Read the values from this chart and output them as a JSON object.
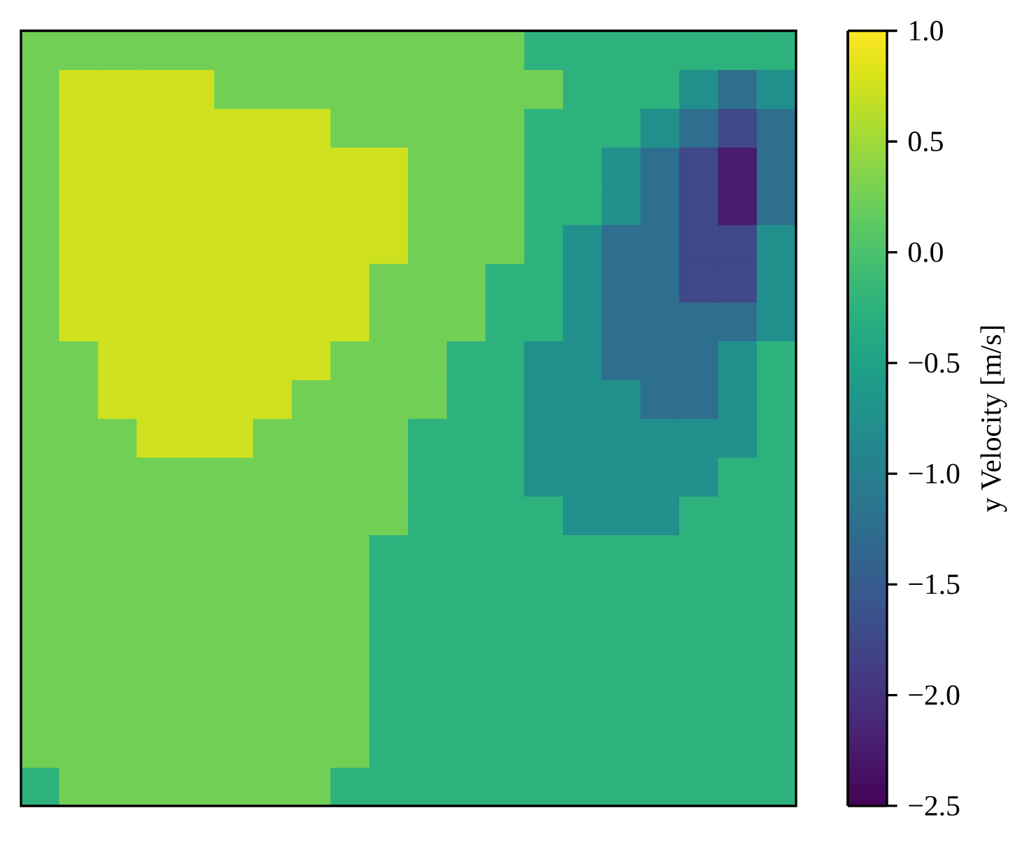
{
  "chart_data": {
    "type": "heatmap",
    "clabel": "y Velocity [m/s]",
    "categories": [
      null,
      null,
      null,
      null,
      null,
      null,
      null,
      null,
      null,
      null,
      null,
      null,
      null,
      null,
      null,
      null,
      null,
      null,
      null,
      null
    ],
    "y_categories": [
      null,
      null,
      null,
      null,
      null,
      null,
      null,
      null,
      null,
      null,
      null,
      null,
      null,
      null,
      null,
      null,
      null,
      null,
      null,
      null
    ],
    "cells": [
      [
        0.25,
        0.25,
        0.25,
        0.25,
        0.25,
        0.25,
        0.25,
        0.25,
        0.25,
        0.25,
        0.25,
        0.25,
        0.25,
        -0.25,
        -0.25,
        -0.25,
        -0.25,
        -0.25,
        -0.25,
        -0.25
      ],
      [
        0.25,
        0.75,
        0.75,
        0.75,
        0.75,
        0.25,
        0.25,
        0.25,
        0.25,
        0.25,
        0.25,
        0.25,
        0.25,
        0.25,
        -0.25,
        -0.25,
        -0.25,
        -0.75,
        -1.25,
        -0.75
      ],
      [
        0.25,
        0.75,
        0.75,
        0.75,
        0.75,
        0.75,
        0.75,
        0.75,
        0.25,
        0.25,
        0.25,
        0.25,
        0.25,
        -0.25,
        -0.25,
        -0.25,
        -0.75,
        -1.25,
        -1.75,
        -1.25
      ],
      [
        0.25,
        0.75,
        0.75,
        0.75,
        0.75,
        0.75,
        0.75,
        0.75,
        0.75,
        0.75,
        0.25,
        0.25,
        0.25,
        -0.25,
        -0.25,
        -0.75,
        -1.25,
        -1.75,
        -2.25,
        -1.25
      ],
      [
        0.25,
        0.75,
        0.75,
        0.75,
        0.75,
        0.75,
        0.75,
        0.75,
        0.75,
        0.75,
        0.25,
        0.25,
        0.25,
        -0.25,
        -0.25,
        -0.75,
        -1.25,
        -1.75,
        -2.25,
        -1.25
      ],
      [
        0.25,
        0.75,
        0.75,
        0.75,
        0.75,
        0.75,
        0.75,
        0.75,
        0.75,
        0.75,
        0.25,
        0.25,
        0.25,
        -0.25,
        -0.75,
        -1.25,
        -1.25,
        -1.75,
        -1.75,
        -0.75
      ],
      [
        0.25,
        0.75,
        0.75,
        0.75,
        0.75,
        0.75,
        0.75,
        0.75,
        0.75,
        0.25,
        0.25,
        0.25,
        -0.25,
        -0.25,
        -0.75,
        -1.25,
        -1.25,
        -1.75,
        -1.75,
        -0.75
      ],
      [
        0.25,
        0.75,
        0.75,
        0.75,
        0.75,
        0.75,
        0.75,
        0.75,
        0.75,
        0.25,
        0.25,
        0.25,
        -0.25,
        -0.25,
        -0.75,
        -1.25,
        -1.25,
        -1.25,
        -1.25,
        -0.75
      ],
      [
        0.25,
        0.25,
        0.75,
        0.75,
        0.75,
        0.75,
        0.75,
        0.75,
        0.25,
        0.25,
        0.25,
        -0.25,
        -0.25,
        -0.75,
        -0.75,
        -1.25,
        -1.25,
        -1.25,
        -0.75,
        -0.25
      ],
      [
        0.25,
        0.25,
        0.75,
        0.75,
        0.75,
        0.75,
        0.75,
        0.25,
        0.25,
        0.25,
        0.25,
        -0.25,
        -0.25,
        -0.75,
        -0.75,
        -0.75,
        -1.25,
        -1.25,
        -0.75,
        -0.25
      ],
      [
        0.25,
        0.25,
        0.25,
        0.75,
        0.75,
        0.75,
        0.25,
        0.25,
        0.25,
        0.25,
        -0.25,
        -0.25,
        -0.25,
        -0.75,
        -0.75,
        -0.75,
        -0.75,
        -0.75,
        -0.75,
        -0.25
      ],
      [
        0.25,
        0.25,
        0.25,
        0.25,
        0.25,
        0.25,
        0.25,
        0.25,
        0.25,
        0.25,
        -0.25,
        -0.25,
        -0.25,
        -0.75,
        -0.75,
        -0.75,
        -0.75,
        -0.75,
        -0.25,
        -0.25
      ],
      [
        0.25,
        0.25,
        0.25,
        0.25,
        0.25,
        0.25,
        0.25,
        0.25,
        0.25,
        0.25,
        -0.25,
        -0.25,
        -0.25,
        -0.25,
        -0.75,
        -0.75,
        -0.75,
        -0.25,
        -0.25,
        -0.25
      ],
      [
        0.25,
        0.25,
        0.25,
        0.25,
        0.25,
        0.25,
        0.25,
        0.25,
        0.25,
        -0.25,
        -0.25,
        -0.25,
        -0.25,
        -0.25,
        -0.25,
        -0.25,
        -0.25,
        -0.25,
        -0.25,
        -0.25
      ],
      [
        0.25,
        0.25,
        0.25,
        0.25,
        0.25,
        0.25,
        0.25,
        0.25,
        0.25,
        -0.25,
        -0.25,
        -0.25,
        -0.25,
        -0.25,
        -0.25,
        -0.25,
        -0.25,
        -0.25,
        -0.25,
        -0.25
      ],
      [
        0.25,
        0.25,
        0.25,
        0.25,
        0.25,
        0.25,
        0.25,
        0.25,
        0.25,
        -0.25,
        -0.25,
        -0.25,
        -0.25,
        -0.25,
        -0.25,
        -0.25,
        -0.25,
        -0.25,
        -0.25,
        -0.25
      ],
      [
        0.25,
        0.25,
        0.25,
        0.25,
        0.25,
        0.25,
        0.25,
        0.25,
        0.25,
        -0.25,
        -0.25,
        -0.25,
        -0.25,
        -0.25,
        -0.25,
        -0.25,
        -0.25,
        -0.25,
        -0.25,
        -0.25
      ],
      [
        0.25,
        0.25,
        0.25,
        0.25,
        0.25,
        0.25,
        0.25,
        0.25,
        0.25,
        -0.25,
        -0.25,
        -0.25,
        -0.25,
        -0.25,
        -0.25,
        -0.25,
        -0.25,
        -0.25,
        -0.25,
        -0.25
      ],
      [
        0.25,
        0.25,
        0.25,
        0.25,
        0.25,
        0.25,
        0.25,
        0.25,
        0.25,
        -0.25,
        -0.25,
        -0.25,
        -0.25,
        -0.25,
        -0.25,
        -0.25,
        -0.25,
        -0.25,
        -0.25,
        -0.25
      ],
      [
        -0.25,
        0.25,
        0.25,
        0.25,
        0.25,
        0.25,
        0.25,
        0.25,
        -0.25,
        -0.25,
        -0.25,
        -0.25,
        -0.25,
        -0.25,
        -0.25,
        -0.25,
        -0.25,
        -0.25,
        -0.25,
        -0.25
      ]
    ],
    "clim": [
      -2.5,
      1.0
    ],
    "cticks": [
      {
        "value": -2.5,
        "label": "−2.5"
      },
      {
        "value": -2.0,
        "label": "−2.0"
      },
      {
        "value": -1.5,
        "label": "−1.5"
      },
      {
        "value": -1.0,
        "label": "−1.0"
      },
      {
        "value": -0.5,
        "label": "−0.5"
      },
      {
        "value": 0,
        "label": "0.0"
      },
      {
        "value": 0.5,
        "label": "0.5"
      },
      {
        "value": 1,
        "label": "1.0"
      }
    ],
    "tick_labels": false
  }
}
